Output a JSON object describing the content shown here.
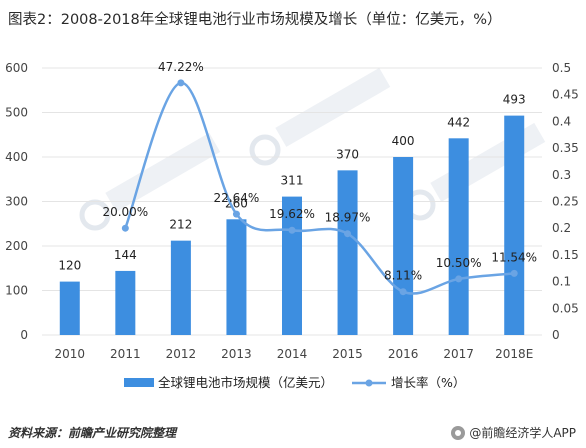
{
  "title": "图表2：2008-2018年全球锂电池行业市场规模及增长（单位：亿美元，%）",
  "source": "资料来源：前瞻产业研究院整理",
  "brand": "@前瞻经济学人APP",
  "colors": {
    "bar": "#3d8ee0",
    "line": "#6aa4e4",
    "grid": "#e4e4e4",
    "text": "#444444"
  },
  "chart_data": {
    "type": "bar",
    "categories": [
      "2010",
      "2011",
      "2012",
      "2013",
      "2014",
      "2015",
      "2016",
      "2017",
      "2018E"
    ],
    "title": "图表2：2008-2018年全球锂电池行业市场规模及增长（单位：亿美元，%）",
    "ylim": [
      0,
      600
    ],
    "y_ticks": [
      "0",
      "100",
      "200",
      "300",
      "400",
      "500",
      "600"
    ],
    "y2lim": [
      0,
      0.5
    ],
    "y2_ticks": [
      "0",
      "0.05",
      "0.1",
      "0.15",
      "0.2",
      "0.25",
      "0.3",
      "0.35",
      "0.4",
      "0.45",
      "0.5"
    ],
    "grid": true,
    "legend_position": "bottom",
    "series": [
      {
        "name": "全球锂电池市场规模（亿美元）",
        "type": "bar",
        "axis": "left",
        "values": [
          120,
          144,
          212,
          260,
          311,
          370,
          400,
          442,
          493
        ],
        "labels": [
          "120",
          "144",
          "212",
          "260",
          "311",
          "370",
          "400",
          "442",
          "493"
        ]
      },
      {
        "name": "增长率（%）",
        "type": "line",
        "axis": "right",
        "values": [
          null,
          0.2,
          0.4722,
          0.2264,
          0.1962,
          0.1897,
          0.0811,
          0.105,
          0.1154
        ],
        "labels": [
          "",
          "20.00%",
          "47.22%",
          "22.64%",
          "19.62%",
          "18.97%",
          "8.11%",
          "10.50%",
          "11.54%"
        ]
      }
    ]
  }
}
